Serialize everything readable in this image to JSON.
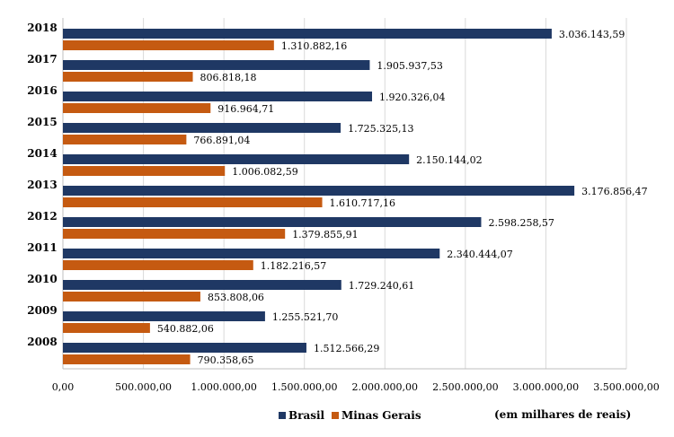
{
  "chart_data": {
    "type": "bar",
    "orientation": "horizontal",
    "categories": [
      "2018",
      "2017",
      "2016",
      "2015",
      "2014",
      "2013",
      "2012",
      "2011",
      "2010",
      "2009",
      "2008"
    ],
    "series": [
      {
        "name": "Brasil",
        "color": "#1f3864",
        "values": [
          3036143.59,
          1905937.53,
          1920326.04,
          1725325.13,
          2150144.02,
          3176856.47,
          2598258.57,
          2340444.07,
          1729240.61,
          1255521.7,
          1512566.29
        ],
        "labels": [
          "3.036.143,59",
          "1.905.937,53",
          "1.920.326,04",
          "1.725.325,13",
          "2.150.144,02",
          "3.176.856,47",
          "2.598.258,57",
          "2.340.444,07",
          "1.729.240,61",
          "1.255.521,70",
          "1.512.566,29"
        ]
      },
      {
        "name": "Minas Gerais",
        "color": "#c55a11",
        "values": [
          1310882.16,
          806818.18,
          916964.71,
          766891.04,
          1006082.59,
          1610717.16,
          1379855.91,
          1182216.57,
          853808.06,
          540882.06,
          790358.65
        ],
        "labels": [
          "1.310.882,16",
          "806.818,18",
          "916.964,71",
          "766.891,04",
          "1.006.082,59",
          "1.610.717,16",
          "1.379.855,91",
          "1.182.216,57",
          "853.808,06",
          "540.882,06",
          "790.358,65"
        ]
      }
    ],
    "xlim": [
      0,
      3500000
    ],
    "ticks": [
      0,
      500000,
      1000000,
      1500000,
      2000000,
      2500000,
      3000000,
      3500000
    ],
    "tick_labels": [
      "0,00",
      "500.000,00",
      "1.000.000,00",
      "1.500.000,00",
      "2.000.000,00",
      "2.500.000,00",
      "3.000.000,00",
      "3.500.000,00"
    ],
    "grid": "vertical",
    "legend_position": "bottom",
    "unit_note": "(em milhares de reais)"
  }
}
